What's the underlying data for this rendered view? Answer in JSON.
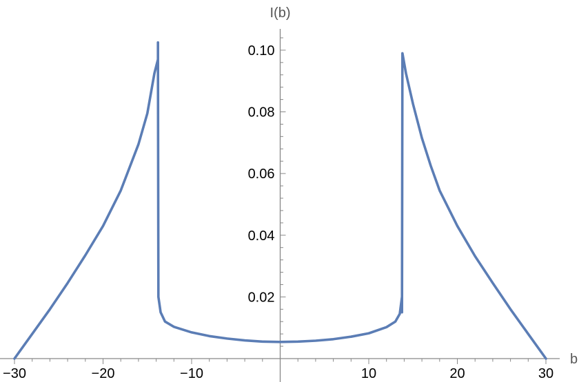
{
  "chart_data": {
    "type": "line",
    "title": "",
    "xlabel": "b",
    "ylabel": "I(b)",
    "xlim": [
      -30,
      30
    ],
    "ylim": [
      0,
      0.106
    ],
    "x_ticks": [
      -30,
      -20,
      -10,
      10,
      20,
      30
    ],
    "x_tick_labels": [
      "−30",
      "−20",
      "−10",
      "10",
      "20",
      "30"
    ],
    "y_ticks": [
      0.02,
      0.04,
      0.06,
      0.08,
      0.1
    ],
    "y_tick_labels": [
      "0.02",
      "0.04",
      "0.06",
      "0.08",
      "0.10"
    ],
    "grid": false,
    "legend": "none",
    "colors": {
      "series": "#5b7db5",
      "axis": "#888888",
      "tick_text": "#000000",
      "axis_label_text": "#555555"
    },
    "series": [
      {
        "points": [
          [
            -30,
            0.0
          ],
          [
            -28,
            0.008
          ],
          [
            -26,
            0.016
          ],
          [
            -24,
            0.0245
          ],
          [
            -22,
            0.0335
          ],
          [
            -20,
            0.043
          ],
          [
            -18,
            0.0545
          ],
          [
            -16,
            0.0695
          ],
          [
            -15,
            0.0795
          ],
          [
            -14.2,
            0.0925
          ],
          [
            -13.8,
            0.097
          ],
          [
            -13.8,
            0.1025
          ],
          [
            -13.8,
            0.097
          ],
          [
            -13.75,
            0.02
          ],
          [
            -13.5,
            0.015
          ],
          [
            -13.0,
            0.012
          ],
          [
            -12.0,
            0.0103
          ],
          [
            -10,
            0.0085
          ],
          [
            -8,
            0.0073
          ],
          [
            -6,
            0.0065
          ],
          [
            -4,
            0.0059
          ],
          [
            -2,
            0.0055
          ],
          [
            0,
            0.0054
          ],
          [
            2,
            0.0055
          ],
          [
            4,
            0.0058
          ],
          [
            6,
            0.0063
          ],
          [
            8,
            0.0071
          ],
          [
            10,
            0.0082
          ],
          [
            12,
            0.0102
          ],
          [
            13.0,
            0.012
          ],
          [
            13.5,
            0.0145
          ],
          [
            13.75,
            0.02
          ],
          [
            13.75,
            0.015
          ],
          [
            13.8,
            0.099
          ],
          [
            14.2,
            0.0925
          ],
          [
            15,
            0.0825
          ],
          [
            16,
            0.0715
          ],
          [
            17,
            0.0625
          ],
          [
            18,
            0.0545
          ],
          [
            20,
            0.043
          ],
          [
            22,
            0.0332
          ],
          [
            24,
            0.0245
          ],
          [
            26,
            0.016
          ],
          [
            28,
            0.008
          ],
          [
            30,
            0.0
          ]
        ]
      }
    ]
  }
}
